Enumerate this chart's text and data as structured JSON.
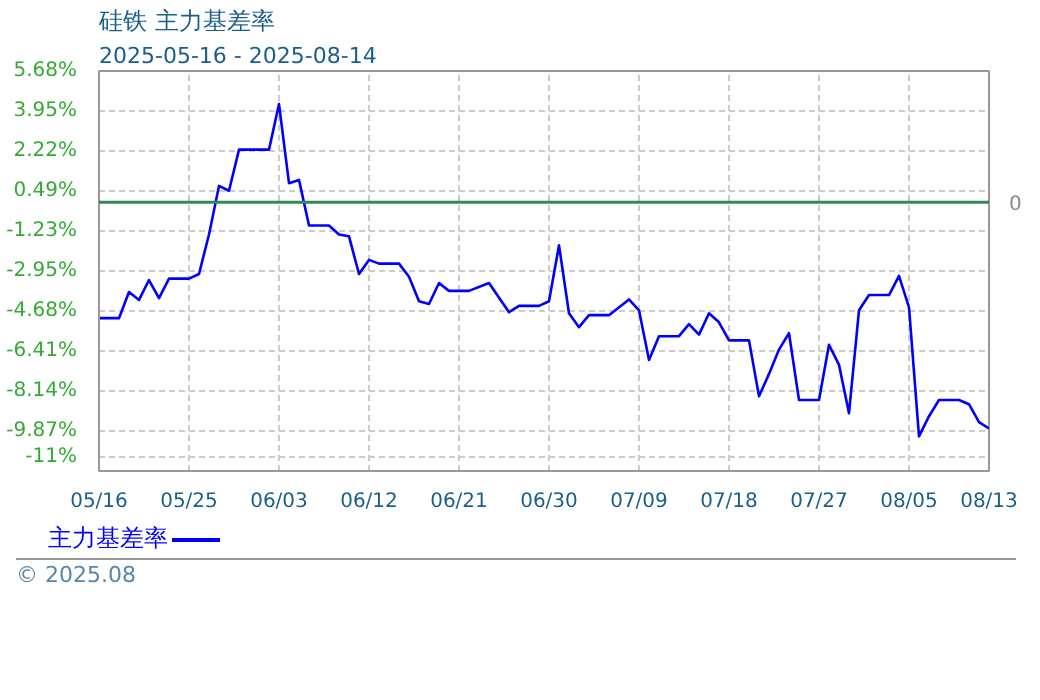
{
  "chart_data": {
    "type": "line",
    "title": "硅铁  主力基差率",
    "subtitle": "2025-05-16 - 2025-08-14",
    "x": [
      "2025-05-16",
      "2025-05-18",
      "2025-05-19",
      "2025-05-20",
      "2025-05-21",
      "2025-05-22",
      "2025-05-23",
      "2025-05-25",
      "2025-05-26",
      "2025-05-27",
      "2025-05-28",
      "2025-05-29",
      "2025-05-30",
      "2025-06-02",
      "2025-06-03",
      "2025-06-04",
      "2025-06-05",
      "2025-06-06",
      "2025-06-08",
      "2025-06-09",
      "2025-06-10",
      "2025-06-11",
      "2025-06-12",
      "2025-06-13",
      "2025-06-15",
      "2025-06-16",
      "2025-06-17",
      "2025-06-18",
      "2025-06-19",
      "2025-06-20",
      "2025-06-22",
      "2025-06-24",
      "2025-06-26",
      "2025-06-27",
      "2025-06-29",
      "2025-06-30",
      "2025-07-01",
      "2025-07-02",
      "2025-07-03",
      "2025-07-04",
      "2025-07-06",
      "2025-07-08",
      "2025-07-09",
      "2025-07-10",
      "2025-07-11",
      "2025-07-13",
      "2025-07-14",
      "2025-07-15",
      "2025-07-16",
      "2025-07-17",
      "2025-07-18",
      "2025-07-20",
      "2025-07-21",
      "2025-07-22",
      "2025-07-23",
      "2025-07-24",
      "2025-07-25",
      "2025-07-27",
      "2025-07-28",
      "2025-07-29",
      "2025-07-30",
      "2025-07-31",
      "2025-08-01",
      "2025-08-03",
      "2025-08-04",
      "2025-08-05",
      "2025-08-06",
      "2025-08-07",
      "2025-08-08",
      "2025-08-10",
      "2025-08-11",
      "2025-08-12",
      "2025-08-13"
    ],
    "series": [
      {
        "name": "主力基差率",
        "color": "#0000ff",
        "values": [
          -5.01,
          -5.01,
          -3.88,
          -4.22,
          -3.36,
          -4.14,
          -3.3,
          -3.3,
          -3.1,
          -1.39,
          0.71,
          0.5,
          2.28,
          2.28,
          4.25,
          0.83,
          0.97,
          -1.0,
          -1.0,
          -1.39,
          -1.47,
          -3.1,
          -2.49,
          -2.65,
          -2.65,
          -3.22,
          -4.28,
          -4.4,
          -3.49,
          -3.83,
          -3.83,
          -3.49,
          -4.75,
          -4.48,
          -4.48,
          -4.28,
          -1.86,
          -4.8,
          -5.4,
          -4.88,
          -4.88,
          -4.2,
          -4.67,
          -6.82,
          -5.79,
          -5.79,
          -5.27,
          -5.72,
          -4.8,
          -5.19,
          -5.97,
          -5.97,
          -8.39,
          -7.42,
          -6.37,
          -5.66,
          -8.55,
          -8.55,
          -6.16,
          -7.03,
          -9.12,
          -4.67,
          -4.01,
          -4.01,
          -3.18,
          -4.54,
          -10.12,
          -9.25,
          -8.55,
          -8.55,
          -8.73,
          -9.51,
          -9.78
        ]
      }
    ],
    "xlim": [
      "2025-05-16",
      "2025-08-13"
    ],
    "xticks": [
      {
        "value": "2025-05-16",
        "label": "05/16"
      },
      {
        "value": "2025-05-25",
        "label": "05/25"
      },
      {
        "value": "2025-06-03",
        "label": "06/03"
      },
      {
        "value": "2025-06-12",
        "label": "06/12"
      },
      {
        "value": "2025-06-21",
        "label": "06/21"
      },
      {
        "value": "2025-06-30",
        "label": "06/30"
      },
      {
        "value": "2025-07-09",
        "label": "07/09"
      },
      {
        "value": "2025-07-18",
        "label": "07/18"
      },
      {
        "value": "2025-07-27",
        "label": "07/27"
      },
      {
        "value": "2025-08-05",
        "label": "08/05"
      },
      {
        "value": "2025-08-13",
        "label": "08/13"
      }
    ],
    "ylim": [
      -11.62,
      5.68
    ],
    "yticks": [
      {
        "value": 5.68,
        "label": "5.68%"
      },
      {
        "value": 3.95,
        "label": "3.95%"
      },
      {
        "value": 2.22,
        "label": "2.22%"
      },
      {
        "value": 0.49,
        "label": "0.49%"
      },
      {
        "value": -1.23,
        "label": "-1.23%"
      },
      {
        "value": -2.95,
        "label": "-2.95%"
      },
      {
        "value": -4.68,
        "label": "-4.68%"
      },
      {
        "value": -6.41,
        "label": "-6.41%"
      },
      {
        "value": -8.14,
        "label": "-8.14%"
      },
      {
        "value": -9.87,
        "label": "-9.87%"
      },
      {
        "value": -11,
        "label": "-11%"
      }
    ],
    "ref_lines": [
      {
        "axis": "y",
        "value": 0,
        "label": "0",
        "color": "#2e8b57"
      }
    ],
    "grid": true,
    "legend": "bottom",
    "line_style": "solid",
    "marker": "none",
    "annotations": [
      "© 2025.08"
    ]
  }
}
